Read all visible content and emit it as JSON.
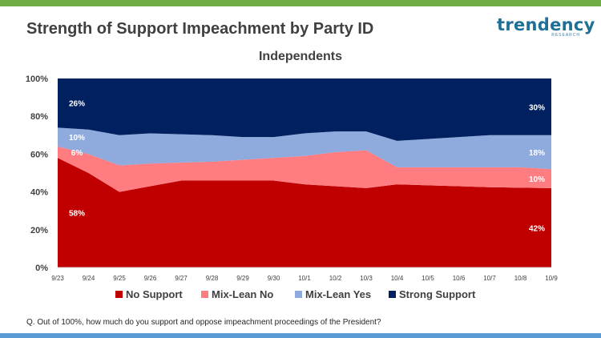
{
  "header": {
    "title": "Strength of Support Impeachment by Party ID",
    "logo_text": "trendency",
    "logo_subtext": "RESEARCH"
  },
  "footer": {
    "question": "Q. Out of 100%, how much do you support and oppose impeachment proceedings of the President?"
  },
  "colors": {
    "no_support": "#c00000",
    "mix_lean_no": "#ff7c80",
    "mix_lean_yes": "#8faadc",
    "strong_support": "#002060",
    "accent_top": "#70ad47",
    "accent_bottom": "#5b9bd5"
  },
  "chart_data": {
    "type": "area",
    "stacked": true,
    "percent": true,
    "title": "Independents",
    "categories": [
      "9/23",
      "9/24",
      "9/25",
      "9/26",
      "9/27",
      "9/28",
      "9/29",
      "9/30",
      "10/1",
      "10/2",
      "10/3",
      "10/4",
      "10/5",
      "10/6",
      "10/7",
      "10/8",
      "10/9"
    ],
    "ylim": [
      0,
      100
    ],
    "yticks": [
      "0%",
      "20%",
      "40%",
      "60%",
      "80%",
      "100%"
    ],
    "grid": false,
    "legend_position": "bottom",
    "series": [
      {
        "name": "No Support",
        "values": [
          58,
          50,
          40,
          43,
          46,
          46,
          46,
          46,
          44,
          43,
          42,
          44,
          43.5,
          43,
          42.5,
          42.2,
          42
        ]
      },
      {
        "name": "Mix-Lean No",
        "values": [
          6,
          10,
          14,
          12,
          9.5,
          10,
          11,
          12,
          15,
          18,
          20,
          9,
          9.5,
          10,
          10.5,
          10.8,
          10
        ]
      },
      {
        "name": "Mix-Lean Yes",
        "values": [
          10,
          13,
          16,
          16,
          15,
          14,
          12,
          11,
          12,
          11,
          10,
          14,
          15,
          16,
          17,
          17,
          18
        ]
      },
      {
        "name": "Strong Support",
        "values": [
          26,
          27,
          30,
          29,
          29.5,
          30,
          31,
          31,
          29,
          28,
          28,
          33,
          32,
          31,
          30,
          30,
          30
        ]
      }
    ],
    "data_labels": [
      {
        "text": "26%",
        "index": 0,
        "series": 3
      },
      {
        "text": "10%",
        "index": 0,
        "series": 2
      },
      {
        "text": "6%",
        "index": 0,
        "series": 1
      },
      {
        "text": "58%",
        "index": 0,
        "series": 0
      },
      {
        "text": "30%",
        "index": 16,
        "series": 3
      },
      {
        "text": "18%",
        "index": 16,
        "series": 2
      },
      {
        "text": "10%",
        "index": 16,
        "series": 1
      },
      {
        "text": "42%",
        "index": 16,
        "series": 0
      }
    ]
  }
}
